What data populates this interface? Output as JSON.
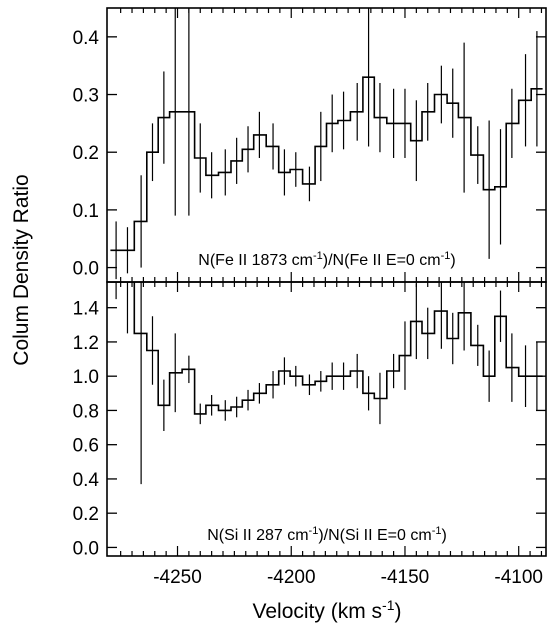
{
  "chart_data": {
    "type": "line",
    "drawstyle": "steps-mid",
    "shared_x_axis": {
      "label_main": "Velocity (km s",
      "label_sup": "-1",
      "label_end": ")",
      "xlim": [
        -4281,
        -4088
      ],
      "ticks": [
        -4250,
        -4200,
        -4150,
        -4100
      ],
      "tick_labels": [
        "-4250",
        "-4200",
        "-4150",
        "-4100"
      ]
    },
    "ylabel": "Colum Density Ratio",
    "panels": [
      {
        "annotation": {
          "pre": "N(Fe II 1873 cm",
          "sup1": "-1",
          "mid": ")/N(Fe II E=0 cm",
          "sup2": "-1",
          "post": ")"
        },
        "ylim": [
          -0.025,
          0.45
        ],
        "yticks": [
          0.0,
          0.1,
          0.2,
          0.3,
          0.4
        ],
        "ytick_labels": [
          "0.0",
          "0.1",
          "0.2",
          "0.3",
          "0.4"
        ],
        "x": [
          -4277,
          -4272,
          -4266,
          -4261,
          -4256,
          -4251,
          -4245,
          -4240,
          -4235,
          -4229,
          -4224,
          -4219,
          -4214,
          -4208,
          -4203,
          -4198,
          -4192,
          -4187,
          -4182,
          -4177,
          -4171,
          -4166,
          -4161,
          -4155,
          -4150,
          -4145,
          -4140,
          -4134,
          -4129,
          -4124,
          -4118,
          -4113,
          -4108,
          -4103,
          -4097,
          -4092
        ],
        "y": [
          0.03,
          0.03,
          0.08,
          0.2,
          0.26,
          0.27,
          0.27,
          0.19,
          0.16,
          0.165,
          0.185,
          0.205,
          0.23,
          0.21,
          0.165,
          0.17,
          0.145,
          0.21,
          0.25,
          0.255,
          0.27,
          0.33,
          0.26,
          0.25,
          0.25,
          0.22,
          0.27,
          0.3,
          0.285,
          0.26,
          0.195,
          0.135,
          0.14,
          0.25,
          0.29,
          0.31
        ],
        "yerr": [
          0.05,
          0.04,
          0.08,
          0.05,
          0.08,
          0.18,
          0.18,
          0.06,
          0.04,
          0.04,
          0.04,
          0.04,
          0.04,
          0.04,
          0.04,
          0.03,
          0.03,
          0.06,
          0.05,
          0.05,
          0.05,
          0.12,
          0.06,
          0.06,
          0.06,
          0.07,
          0.05,
          0.05,
          0.06,
          0.13,
          0.05,
          0.12,
          0.1,
          0.06,
          0.08,
          0.1
        ]
      },
      {
        "annotation": {
          "pre": "N(Si II 287 cm",
          "sup1": "-1",
          "mid": ")/N(Si II E=0 cm",
          "sup2": "-1",
          "post": ")"
        },
        "ylim": [
          -0.05,
          1.55
        ],
        "yticks": [
          0.0,
          0.2,
          0.4,
          0.6,
          0.8,
          1.0,
          1.2,
          1.4
        ],
        "ytick_labels": [
          "0.0",
          "0.2",
          "0.4",
          "0.6",
          "0.8",
          "1.0",
          "1.2",
          "1.4"
        ],
        "x": [
          -4277,
          -4272,
          -4266,
          -4261,
          -4256,
          -4251,
          -4245,
          -4240,
          -4235,
          -4229,
          -4224,
          -4219,
          -4214,
          -4208,
          -4203,
          -4198,
          -4192,
          -4187,
          -4182,
          -4177,
          -4171,
          -4166,
          -4161,
          -4155,
          -4150,
          -4145,
          -4140,
          -4134,
          -4129,
          -4124,
          -4118,
          -4113,
          -4108,
          -4103,
          -4097,
          -4092
        ],
        "y": [
          1.55,
          1.55,
          1.25,
          1.15,
          0.83,
          1.02,
          1.04,
          0.78,
          0.83,
          0.8,
          0.82,
          0.86,
          0.9,
          0.95,
          1.03,
          1.0,
          0.95,
          0.97,
          1.0,
          1.0,
          1.03,
          0.9,
          0.87,
          1.03,
          1.12,
          1.32,
          1.25,
          1.38,
          1.22,
          1.37,
          1.18,
          1.0,
          1.35,
          1.05,
          1.0,
          1.0
        ],
        "yerr": [
          0.1,
          0.3,
          0.88,
          0.2,
          0.15,
          0.23,
          0.08,
          0.06,
          0.06,
          0.06,
          0.06,
          0.06,
          0.06,
          0.08,
          0.08,
          0.06,
          0.06,
          0.06,
          0.08,
          0.08,
          0.1,
          0.1,
          0.15,
          0.1,
          0.2,
          0.22,
          0.15,
          0.22,
          0.15,
          0.22,
          0.12,
          0.15,
          0.15,
          0.2,
          0.18,
          0.2
        ]
      }
    ]
  }
}
